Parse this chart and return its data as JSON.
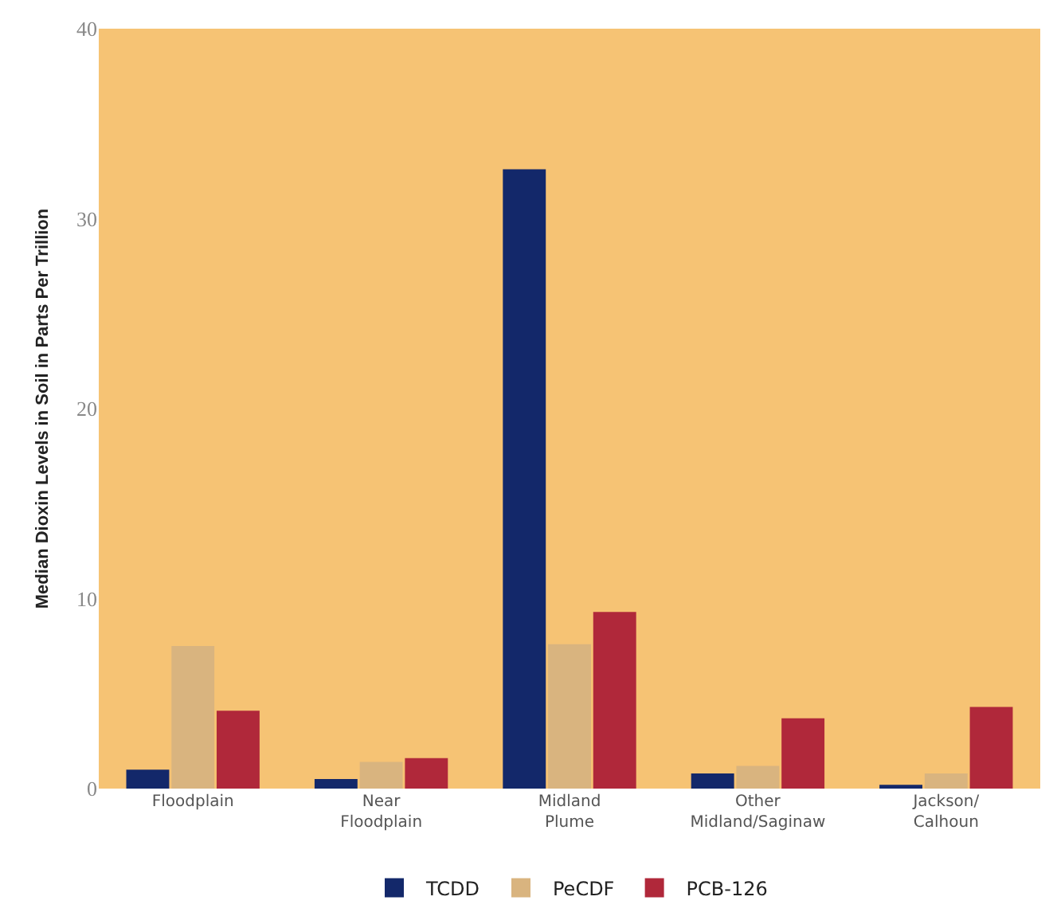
{
  "chart_data": {
    "type": "bar",
    "ylabel": "Median Dioxin Levels in Soil in Parts Per Trillion",
    "categories": [
      "Floodplain",
      "Near\nFloodplain",
      "Midland\nPlume",
      "Other\nMidland/Saginaw",
      "Jackson/\nCalhoun"
    ],
    "series": [
      {
        "name": "TCDD",
        "color": "#13286a",
        "values": [
          1.0,
          0.5,
          32.6,
          0.8,
          0.2
        ]
      },
      {
        "name": "PeCDF",
        "color": "#d9b47f",
        "values": [
          7.5,
          1.4,
          7.6,
          1.2,
          0.8
        ]
      },
      {
        "name": "PCB-126",
        "color": "#b0283a",
        "values": [
          4.1,
          1.6,
          9.3,
          3.7,
          4.3
        ]
      }
    ],
    "ylim": [
      0,
      40
    ],
    "yticks": [
      0,
      10,
      20,
      30,
      40
    ],
    "grid": false,
    "legend": "bottom"
  }
}
